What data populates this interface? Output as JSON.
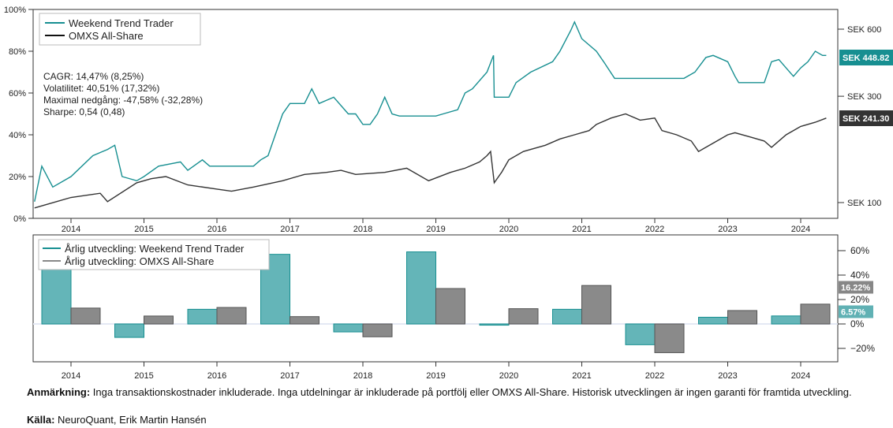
{
  "colors": {
    "wtt": "#178f91",
    "omxs": "#333333",
    "wtt_bar": "#64b5b8",
    "omxs_bar": "#8a8a8a"
  },
  "chart_data": [
    {
      "type": "line",
      "title": "",
      "legend": [
        "Weekend Trend Trader",
        "OMXS All-Share"
      ],
      "legend_position": "top-left",
      "y_ticks": [
        "0%",
        "20%",
        "40%",
        "60%",
        "80%",
        "100%"
      ],
      "ylim": [
        0,
        100
      ],
      "x_ticks": [
        "2014",
        "2015",
        "2016",
        "2017",
        "2018",
        "2019",
        "2020",
        "2021",
        "2022",
        "2023",
        "2024"
      ],
      "xlim": [
        2013.5,
        2024.5
      ],
      "right_ticks": [
        {
          "label": "SEK 100",
          "value": 100
        },
        {
          "label": "SEK 300",
          "value": 300
        },
        {
          "label": "SEK 600",
          "value": 600
        }
      ],
      "end_labels": [
        "SEK 448.82",
        "SEK 241.30"
      ],
      "stats": [
        "CAGR: 14,47% (8,25%)",
        "Volatilitet: 40,51% (17,32%)",
        "Maximal nedgång: -47,58% (-32,28%)",
        "Sharpe: 0,54 (0,48)"
      ],
      "series": [
        {
          "name": "Weekend Trend Trader",
          "x": [
            2013.5,
            2013.6,
            2013.75,
            2014,
            2014.3,
            2014.5,
            2014.6,
            2014.7,
            2014.9,
            2015,
            2015.2,
            2015.5,
            2015.6,
            2015.8,
            2015.9,
            2016,
            2016.5,
            2016.6,
            2016.7,
            2016.8,
            2016.9,
            2017,
            2017.2,
            2017.3,
            2017.4,
            2017.6,
            2017.8,
            2017.9,
            2018,
            2018.1,
            2018.2,
            2018.3,
            2018.4,
            2018.5,
            2019,
            2019.1,
            2019.3,
            2019.4,
            2019.5,
            2019.7,
            2019.79,
            2019.8,
            2020,
            2020.1,
            2020.3,
            2020.6,
            2020.7,
            2020.85,
            2020.9,
            2021,
            2021.2,
            2021.3,
            2021.45,
            2022.4,
            2022.55,
            2022.7,
            2022.8,
            2023,
            2023.1,
            2023.15,
            2023.5,
            2023.6,
            2023.7,
            2023.8,
            2023.9,
            2024,
            2024.1,
            2024.2,
            2024.3,
            2024.35
          ],
          "y": [
            8,
            25,
            15,
            20,
            30,
            33,
            35,
            20,
            18,
            20,
            25,
            27,
            23,
            28,
            25,
            25,
            25,
            28,
            30,
            40,
            50,
            55,
            55,
            62,
            55,
            58,
            50,
            50,
            45,
            45,
            50,
            58,
            50,
            49,
            49,
            50,
            52,
            60,
            62,
            70,
            78,
            58,
            58,
            65,
            70,
            75,
            80,
            90,
            94,
            86,
            80,
            75,
            67,
            67,
            70,
            77,
            78,
            75,
            68,
            65,
            65,
            75,
            76,
            72,
            68,
            72,
            75,
            80,
            78,
            78
          ]
        },
        {
          "name": "OMXS All-Share",
          "x": [
            2013.5,
            2014,
            2014.4,
            2014.5,
            2014.9,
            2015.1,
            2015.3,
            2015.6,
            2016,
            2016.2,
            2016.5,
            2016.9,
            2017.2,
            2017.5,
            2017.7,
            2017.9,
            2018.3,
            2018.6,
            2018.9,
            2019.2,
            2019.4,
            2019.6,
            2019.7,
            2019.75,
            2019.8,
            2019.9,
            2020,
            2020.2,
            2020.5,
            2020.7,
            2020.9,
            2021.1,
            2021.2,
            2021.4,
            2021.6,
            2021.8,
            2022,
            2022.1,
            2022.3,
            2022.5,
            2022.6,
            2022.8,
            2023,
            2023.1,
            2023.3,
            2023.5,
            2023.6,
            2023.8,
            2024,
            2024.2,
            2024.35
          ],
          "y": [
            5,
            10,
            12,
            8,
            17,
            19,
            20,
            16,
            14,
            13,
            15,
            18,
            21,
            22,
            23,
            21,
            22,
            24,
            18,
            22,
            24,
            27,
            30,
            32,
            17,
            22,
            28,
            32,
            35,
            38,
            40,
            42,
            45,
            48,
            50,
            47,
            48,
            42,
            40,
            37,
            32,
            36,
            40,
            41,
            39,
            37,
            34,
            40,
            44,
            46,
            48
          ]
        }
      ]
    },
    {
      "type": "bar",
      "legend": [
        "Årlig utveckling: Weekend Trend Trader",
        "Årlig utveckling: OMXS All-Share"
      ],
      "legend_position": "top-left",
      "categories": [
        "2014",
        "2015",
        "2016",
        "2017",
        "2018",
        "2019",
        "2020",
        "2021",
        "2022",
        "2023",
        "2024"
      ],
      "y_ticks": [
        "−20%",
        "0%",
        "20%",
        "40%",
        "60%"
      ],
      "ylim": [
        -30,
        60
      ],
      "end_labels": [
        "16.22%",
        "6.57%"
      ],
      "series": [
        {
          "name": "Årlig utveckling: Weekend Trend Trader",
          "values": [
            65,
            -11,
            12,
            57,
            -6.5,
            59,
            -1,
            12,
            -17,
            5.5,
            6.57
          ]
        },
        {
          "name": "Årlig utveckling: OMXS All-Share",
          "values": [
            13,
            6.5,
            13.5,
            6,
            -10.5,
            29,
            12.5,
            31.5,
            -23.5,
            11,
            16.22
          ]
        }
      ]
    }
  ],
  "notes": {
    "remark_label": "Anmärkning:",
    "remark_text": " Inga transaktionskostnader inkluderade. Inga utdelningar är inkluderade på portfölj eller OMXS All-Share. Historisk utvecklingen är ingen garanti för framtida utveckling.",
    "source_label": "Källa:",
    "source_text": " NeuroQuant, Erik Martin Hansén"
  }
}
